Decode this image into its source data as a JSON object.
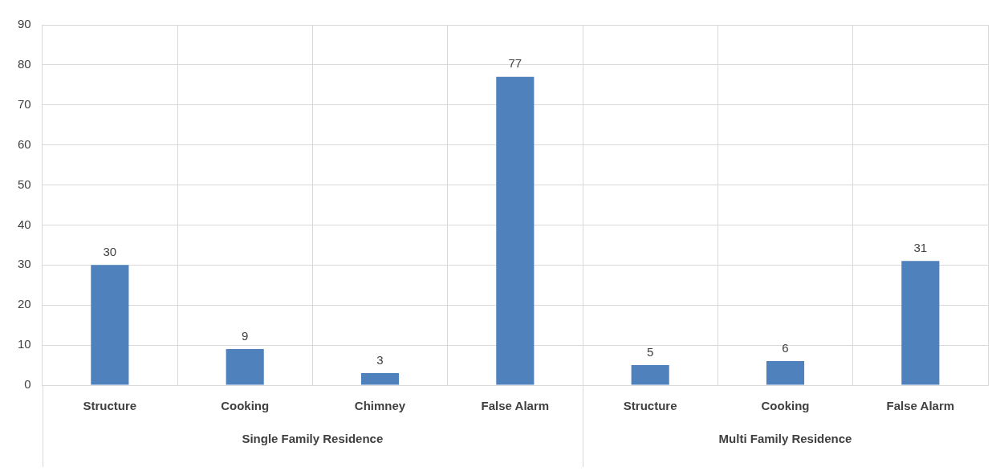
{
  "chart_data": {
    "type": "bar",
    "categories": [
      "Structure",
      "Cooking",
      "Chimney",
      "False Alarm",
      "Structure",
      "Cooking",
      "False Alarm"
    ],
    "values": [
      30,
      9,
      3,
      77,
      5,
      6,
      31
    ],
    "color": "#4f81bd",
    "ylim": [
      0,
      90
    ],
    "yticks": [
      0,
      10,
      20,
      30,
      40,
      50,
      60,
      70,
      80,
      90
    ],
    "grid": true,
    "data_labels": true,
    "annotations": [
      "Single Family Residence",
      "Multi Family Residence"
    ]
  }
}
